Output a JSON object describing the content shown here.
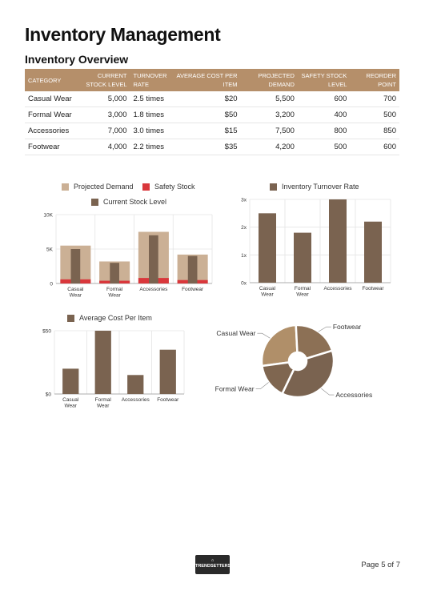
{
  "page": {
    "title": "Inventory Management",
    "section_title": "Inventory Overview",
    "page_number": "Page 5 of 7",
    "logo_text": "TRENDSETTERS"
  },
  "table": {
    "headers": [
      "CATEGORY",
      "CURRENT STOCK LEVEL",
      "TURNOVER RATE",
      "AVERAGE COST PER ITEM",
      "PROJECTED DEMAND",
      "SAFETY STOCK LEVEL",
      "REORDER POINT"
    ],
    "rows": [
      [
        "Casual Wear",
        "5,000",
        "2.5 times",
        "$20",
        "5,500",
        "600",
        "700"
      ],
      [
        "Formal Wear",
        "3,000",
        "1.8 times",
        "$50",
        "3,200",
        "400",
        "500"
      ],
      [
        "Accessories",
        "7,000",
        "3.0 times",
        "$15",
        "7,500",
        "800",
        "850"
      ],
      [
        "Footwear",
        "4,000",
        "2.2 times",
        "$35",
        "4,200",
        "500",
        "600"
      ]
    ]
  },
  "colors": {
    "header": "#b58f6a",
    "projected": "#cbb095",
    "safety": "#d9373b",
    "current": "#7a6350",
    "dark": "#7a6350",
    "pie": [
      "#b08f69",
      "#7f6650",
      "#7a6350",
      "#8c7055"
    ]
  },
  "chart_data": [
    {
      "type": "bar",
      "title": "",
      "categories": [
        "Casual Wear",
        "Formal Wear",
        "Accessories",
        "Footwear"
      ],
      "series": [
        {
          "name": "Projected Demand",
          "values": [
            5500,
            3200,
            7500,
            4200
          ]
        },
        {
          "name": "Safety Stock",
          "values": [
            600,
            400,
            800,
            500
          ]
        },
        {
          "name": "Current Stock Level",
          "values": [
            5000,
            3000,
            7000,
            4000
          ]
        }
      ],
      "yticks": [
        "0",
        "5K",
        "10K"
      ],
      "ylim": [
        0,
        10000
      ],
      "legend": "top",
      "grid": true
    },
    {
      "type": "bar",
      "title": "",
      "categories": [
        "Casual Wear",
        "Formal Wear",
        "Accessories",
        "Footwear"
      ],
      "series": [
        {
          "name": "Inventory Turnover Rate",
          "values": [
            2.5,
            1.8,
            3.0,
            2.2
          ]
        }
      ],
      "yticks": [
        "0x",
        "1x",
        "2x",
        "3x"
      ],
      "ylim": [
        0,
        3
      ],
      "legend": "top",
      "grid": true
    },
    {
      "type": "bar",
      "title": "",
      "categories": [
        "Casual Wear",
        "Formal Wear",
        "Accessories",
        "Footwear"
      ],
      "series": [
        {
          "name": "Average Cost Per Item",
          "values": [
            20,
            50,
            15,
            35
          ]
        }
      ],
      "yticks": [
        "$0",
        "$50"
      ],
      "ylim": [
        0,
        50
      ],
      "legend": "top",
      "grid": true
    },
    {
      "type": "pie",
      "title": "",
      "categories": [
        "Casual Wear",
        "Formal Wear",
        "Accessories",
        "Footwear"
      ],
      "values": [
        5000,
        3000,
        7000,
        4000
      ],
      "donut": true
    }
  ]
}
